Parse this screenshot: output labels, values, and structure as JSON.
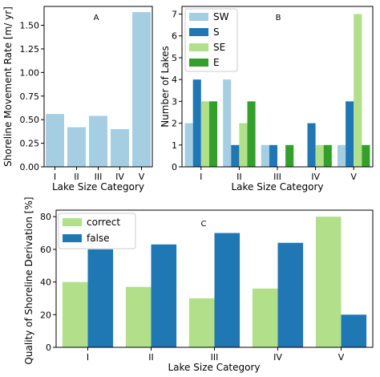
{
  "chart_data": [
    {
      "id": "A",
      "type": "bar",
      "panel_label": "A",
      "categories": [
        "I",
        "II",
        "III",
        "IV",
        "V"
      ],
      "values": [
        0.56,
        0.42,
        0.54,
        0.4,
        1.64
      ],
      "ylim": [
        0,
        1.7
      ],
      "yticks": [
        0.0,
        0.25,
        0.5,
        0.75,
        1.0,
        1.25,
        1.5
      ],
      "ytick_labels": [
        "0.00",
        "0.25",
        "0.50",
        "0.75",
        "1.00",
        "1.25",
        "1.50"
      ],
      "xlabel": "Lake Size Category",
      "ylabel": "Shoreline Movement Rate [m/ yr]",
      "color": "#a6cee3",
      "grid": false
    },
    {
      "id": "B",
      "type": "bar",
      "panel_label": "B",
      "categories": [
        "I",
        "II",
        "III",
        "IV",
        "V"
      ],
      "series": [
        {
          "name": "SW",
          "values": [
            2,
            4,
            1,
            0,
            1
          ],
          "color": "#a6cee3"
        },
        {
          "name": "S",
          "values": [
            4,
            1,
            1,
            2,
            3
          ],
          "color": "#1f78b4"
        },
        {
          "name": "SE",
          "values": [
            3,
            2,
            0,
            1,
            7
          ],
          "color": "#b2df8a"
        },
        {
          "name": "E",
          "values": [
            3,
            3,
            1,
            1,
            1
          ],
          "color": "#33a02c"
        }
      ],
      "ylim": [
        0,
        7.35
      ],
      "yticks": [
        0,
        1,
        2,
        3,
        4,
        5,
        6,
        7
      ],
      "ytick_labels": [
        "0",
        "1",
        "2",
        "3",
        "4",
        "5",
        "6",
        "7"
      ],
      "xlabel": "Lake Size Category",
      "ylabel": "Number of Lakes",
      "legend_position": "top-left",
      "grid": false
    },
    {
      "id": "C",
      "type": "bar",
      "panel_label": "C",
      "categories": [
        "I",
        "II",
        "III",
        "IV",
        "V"
      ],
      "series": [
        {
          "name": "correct",
          "values": [
            40,
            37,
            30,
            36,
            80
          ],
          "color": "#b2df8a"
        },
        {
          "name": "false",
          "values": [
            60,
            63,
            70,
            64,
            20
          ],
          "color": "#1f78b4"
        }
      ],
      "ylim": [
        0,
        84
      ],
      "yticks": [
        0,
        20,
        40,
        60,
        80
      ],
      "ytick_labels": [
        "0",
        "20",
        "40",
        "60",
        "80"
      ],
      "xlabel": "Lake Size Category",
      "ylabel": "Quality of Shoreline Derivation [%]",
      "legend_position": "top-left",
      "grid": false
    }
  ]
}
